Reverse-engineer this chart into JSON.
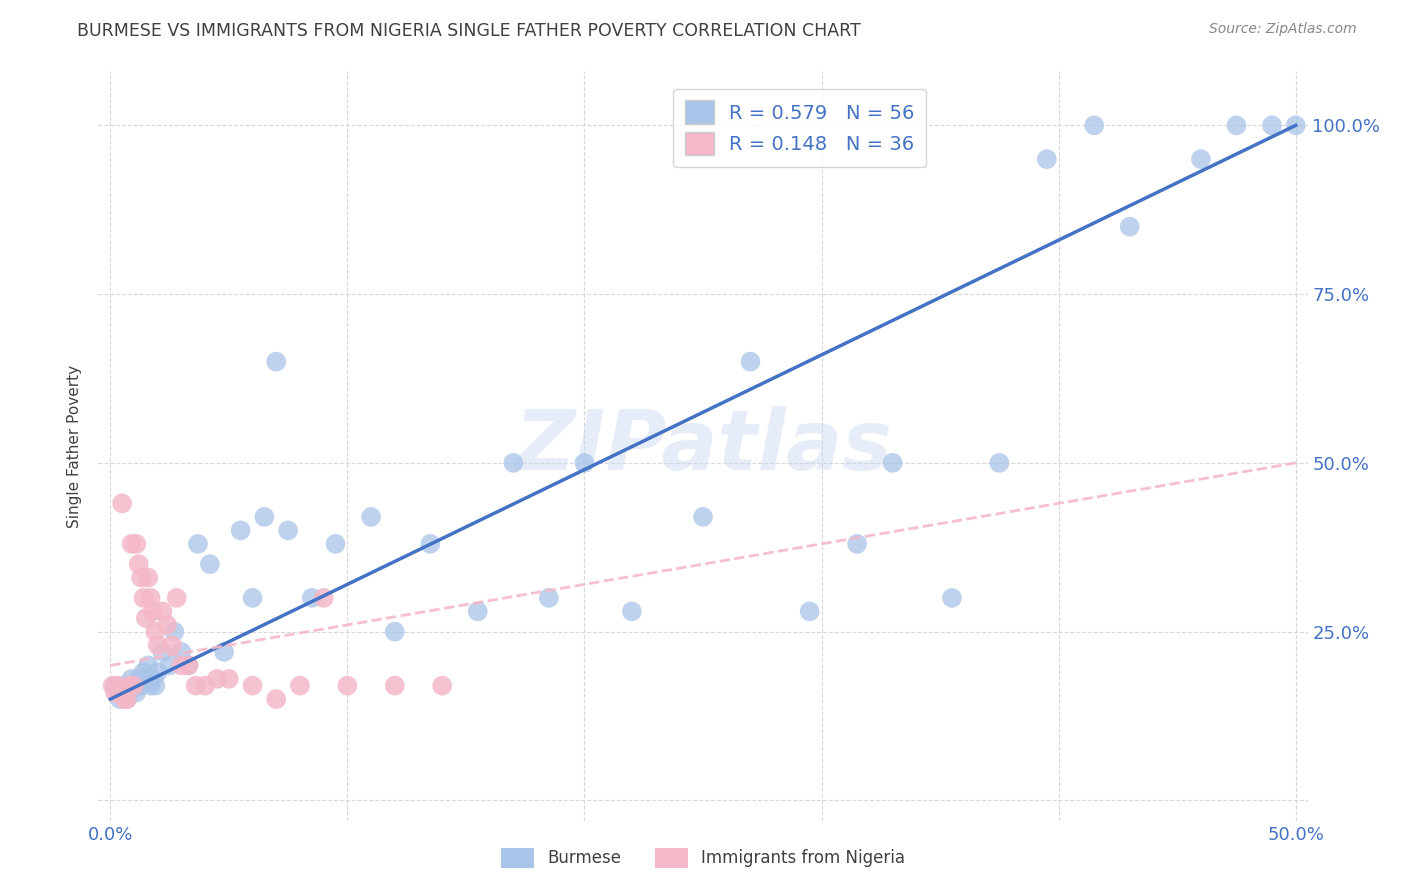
{
  "title": "BURMESE VS IMMIGRANTS FROM NIGERIA SINGLE FATHER POVERTY CORRELATION CHART",
  "source": "Source: ZipAtlas.com",
  "ylabel": "Single Father Poverty",
  "ytick_labels_right": [
    "",
    "25.0%",
    "50.0%",
    "75.0%",
    "100.0%"
  ],
  "ytick_values": [
    0.0,
    0.25,
    0.5,
    0.75,
    1.0
  ],
  "xtick_labels": [
    "0.0%",
    "",
    "",
    "",
    "",
    "50.0%"
  ],
  "xtick_values": [
    0.0,
    0.1,
    0.2,
    0.3,
    0.4,
    0.5
  ],
  "xlim": [
    -0.005,
    0.505
  ],
  "ylim": [
    -0.03,
    1.08
  ],
  "legend_labels": [
    "Burmese",
    "Immigrants from Nigeria"
  ],
  "burmese_R": "0.579",
  "burmese_N": "56",
  "nigeria_R": "0.148",
  "nigeria_N": "36",
  "burmese_color": "#a8c4e8",
  "nigeria_color": "#f4b8c8",
  "burmese_line_color": "#4472c4",
  "nigeria_line_color": "#f4b8c8",
  "watermark": "ZIPatlas",
  "background_color": "#ffffff",
  "grid_color": "#d8d8d8",
  "title_color": "#404040",
  "axis_label_color": "#404040",
  "tick_label_color": "#4472c4",
  "burmese_x": [
    0.002,
    0.003,
    0.004,
    0.005,
    0.006,
    0.007,
    0.008,
    0.009,
    0.01,
    0.011,
    0.012,
    0.013,
    0.014,
    0.015,
    0.016,
    0.017,
    0.018,
    0.019,
    0.02,
    0.022,
    0.025,
    0.027,
    0.03,
    0.033,
    0.037,
    0.042,
    0.048,
    0.055,
    0.06,
    0.065,
    0.07,
    0.075,
    0.085,
    0.095,
    0.11,
    0.12,
    0.135,
    0.155,
    0.17,
    0.185,
    0.2,
    0.22,
    0.25,
    0.27,
    0.295,
    0.315,
    0.33,
    0.355,
    0.375,
    0.395,
    0.415,
    0.43,
    0.46,
    0.475,
    0.49,
    0.5
  ],
  "burmese_y": [
    0.17,
    0.16,
    0.15,
    0.16,
    0.17,
    0.15,
    0.16,
    0.18,
    0.17,
    0.16,
    0.18,
    0.17,
    0.19,
    0.18,
    0.2,
    0.17,
    0.18,
    0.17,
    0.19,
    0.22,
    0.2,
    0.25,
    0.22,
    0.2,
    0.38,
    0.35,
    0.22,
    0.4,
    0.3,
    0.42,
    0.65,
    0.4,
    0.3,
    0.38,
    0.42,
    0.25,
    0.38,
    0.28,
    0.5,
    0.3,
    0.5,
    0.28,
    0.42,
    0.65,
    0.28,
    0.38,
    0.5,
    0.3,
    0.5,
    0.95,
    1.0,
    0.85,
    0.95,
    1.0,
    1.0,
    1.0
  ],
  "nigeria_x": [
    0.001,
    0.002,
    0.003,
    0.005,
    0.006,
    0.007,
    0.008,
    0.009,
    0.01,
    0.011,
    0.012,
    0.013,
    0.014,
    0.015,
    0.016,
    0.017,
    0.018,
    0.019,
    0.02,
    0.022,
    0.024,
    0.026,
    0.028,
    0.03,
    0.033,
    0.036,
    0.04,
    0.045,
    0.05,
    0.06,
    0.07,
    0.08,
    0.09,
    0.1,
    0.12,
    0.14
  ],
  "nigeria_y": [
    0.17,
    0.16,
    0.17,
    0.44,
    0.15,
    0.15,
    0.17,
    0.38,
    0.17,
    0.38,
    0.35,
    0.33,
    0.3,
    0.27,
    0.33,
    0.3,
    0.28,
    0.25,
    0.23,
    0.28,
    0.26,
    0.23,
    0.3,
    0.2,
    0.2,
    0.17,
    0.17,
    0.18,
    0.18,
    0.17,
    0.15,
    0.17,
    0.3,
    0.17,
    0.17,
    0.17
  ]
}
